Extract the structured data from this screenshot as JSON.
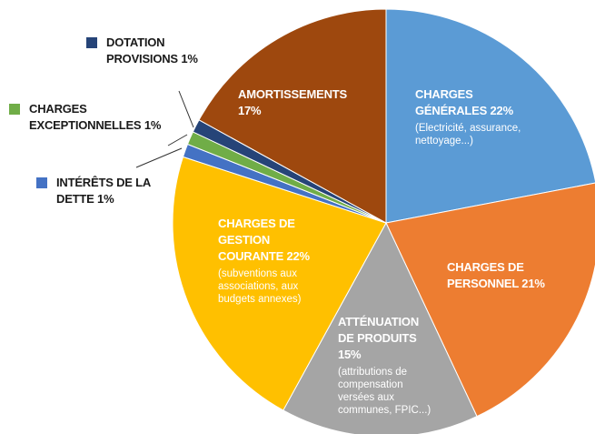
{
  "chart_data": {
    "type": "pie",
    "categories": [
      "CHARGES GÉNÉRALES",
      "CHARGES DE PERSONNEL",
      "ATTÉNUATION DE PRODUITS",
      "CHARGES DE GESTION COURANTE",
      "INTÉRÊTS DE LA DETTE",
      "CHARGES EXCEPTIONNELLES",
      "DOTATION PROVISIONS",
      "AMORTISSEMENTS"
    ],
    "values": [
      22,
      21,
      15,
      22,
      1,
      1,
      1,
      17
    ],
    "value_labels": [
      "22%",
      "21%",
      "15%",
      "22%",
      "1%",
      "1%",
      "1%",
      "17%"
    ],
    "details": [
      "(Electricité, assurance, nettoyage...)",
      null,
      "(attributions de compensation versées aux communes, FPIC...)",
      "(subventions aux associations, aux budgets annexes)",
      null,
      null,
      null,
      null
    ],
    "colors": [
      "#5b9bd5",
      "#ed7d31",
      "#a5a5a5",
      "#ffc000",
      "#4472c4",
      "#70ad47",
      "#264478",
      "#9e480e"
    ]
  }
}
